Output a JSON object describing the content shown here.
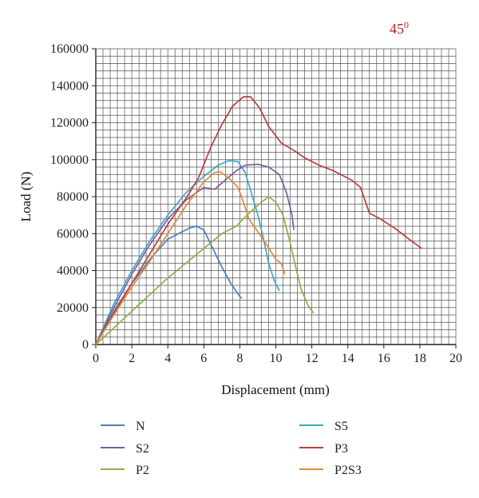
{
  "chart_data": {
    "type": "line",
    "title": "",
    "annotation": "45",
    "annotation_superscript": "0",
    "annotation_color": "#b22222",
    "xlabel": "Displacement (mm)",
    "ylabel": "Load (N)",
    "xlim": [
      0,
      20
    ],
    "ylim": [
      0,
      160000
    ],
    "xticks": [
      0,
      2,
      4,
      6,
      8,
      10,
      12,
      14,
      16,
      18,
      20
    ],
    "yticks": [
      0,
      20000,
      40000,
      60000,
      80000,
      100000,
      120000,
      140000,
      160000
    ],
    "grid": true,
    "grid_minor_x": 0.4,
    "grid_minor_y": 4000,
    "legend_position": "bottom",
    "series": [
      {
        "name": "N",
        "color": "#4a7ebb",
        "points": [
          [
            0,
            0
          ],
          [
            1,
            18000
          ],
          [
            2,
            33000
          ],
          [
            3,
            46000
          ],
          [
            4,
            57000
          ],
          [
            4.6,
            60000
          ],
          [
            5.2,
            63000
          ],
          [
            5.6,
            64000
          ],
          [
            6,
            62000
          ],
          [
            6.5,
            52000
          ],
          [
            7,
            42000
          ],
          [
            7.5,
            33000
          ],
          [
            8,
            26000
          ],
          [
            8.1,
            25000
          ]
        ]
      },
      {
        "name": "S5",
        "color": "#3ea9c6",
        "points": [
          [
            0,
            0
          ],
          [
            1,
            22000
          ],
          [
            2,
            40000
          ],
          [
            3,
            56000
          ],
          [
            4,
            70000
          ],
          [
            5,
            82000
          ],
          [
            6,
            91000
          ],
          [
            6.8,
            97000
          ],
          [
            7.4,
            99500
          ],
          [
            7.9,
            99000
          ],
          [
            8.3,
            93000
          ],
          [
            8.7,
            80000
          ],
          [
            9,
            70000
          ],
          [
            9.3,
            58000
          ],
          [
            9.6,
            44000
          ],
          [
            9.9,
            35000
          ],
          [
            10.2,
            29000
          ]
        ]
      },
      {
        "name": "S2",
        "color": "#7a5ea0",
        "points": [
          [
            0,
            0
          ],
          [
            1,
            20000
          ],
          [
            2,
            38000
          ],
          [
            3,
            54000
          ],
          [
            4,
            68000
          ],
          [
            5,
            78000
          ],
          [
            6,
            85000
          ],
          [
            6.6,
            84000
          ],
          [
            7.2,
            89000
          ],
          [
            7.8,
            94000
          ],
          [
            8.3,
            97000
          ],
          [
            9,
            97500
          ],
          [
            9.6,
            96000
          ],
          [
            10.2,
            92000
          ],
          [
            10.6,
            82000
          ],
          [
            10.9,
            70000
          ],
          [
            11,
            62000
          ]
        ]
      },
      {
        "name": "P3",
        "color": "#b7403f",
        "points": [
          [
            0,
            0
          ],
          [
            1,
            17000
          ],
          [
            2,
            33000
          ],
          [
            3,
            49000
          ],
          [
            4,
            65000
          ],
          [
            5,
            79000
          ],
          [
            5.7,
            90000
          ],
          [
            6.4,
            107000
          ],
          [
            7,
            119000
          ],
          [
            7.6,
            129000
          ],
          [
            8.2,
            134000
          ],
          [
            8.6,
            134000
          ],
          [
            9.1,
            128000
          ],
          [
            9.6,
            118000
          ],
          [
            10.3,
            109000
          ],
          [
            11,
            105000
          ],
          [
            11.6,
            101000
          ],
          [
            12.4,
            97000
          ],
          [
            13.2,
            94000
          ],
          [
            14.2,
            89000
          ],
          [
            14.7,
            85000
          ],
          [
            15.2,
            71000
          ],
          [
            15.8,
            68000
          ],
          [
            16.6,
            63000
          ],
          [
            17.4,
            57000
          ],
          [
            18.1,
            52000
          ]
        ]
      },
      {
        "name": "P2",
        "color": "#8db04a",
        "points": [
          [
            0,
            0
          ],
          [
            1,
            9000
          ],
          [
            2,
            18000
          ],
          [
            3,
            27000
          ],
          [
            4,
            36000
          ],
          [
            5,
            44000
          ],
          [
            6,
            52000
          ],
          [
            7,
            60000
          ],
          [
            7.8,
            64000
          ],
          [
            8.5,
            71000
          ],
          [
            9.2,
            77000
          ],
          [
            9.6,
            80000
          ],
          [
            10,
            77000
          ],
          [
            10.4,
            70000
          ],
          [
            10.8,
            55000
          ],
          [
            11.1,
            42000
          ],
          [
            11.4,
            30000
          ],
          [
            11.8,
            21000
          ],
          [
            12.1,
            17000
          ]
        ]
      },
      {
        "name": "P2S3",
        "color": "#e08a35",
        "points": [
          [
            0,
            0
          ],
          [
            1,
            16000
          ],
          [
            2,
            31000
          ],
          [
            3,
            45000
          ],
          [
            4,
            60000
          ],
          [
            5,
            75000
          ],
          [
            6,
            88000
          ],
          [
            6.6,
            93000
          ],
          [
            6.9,
            93500
          ],
          [
            7.4,
            90000
          ],
          [
            7.9,
            85000
          ],
          [
            8.2,
            77000
          ],
          [
            8.5,
            68000
          ],
          [
            9,
            61000
          ],
          [
            9.5,
            54000
          ],
          [
            10,
            46000
          ],
          [
            10.3,
            44000
          ],
          [
            10.5,
            38000
          ]
        ]
      }
    ]
  }
}
